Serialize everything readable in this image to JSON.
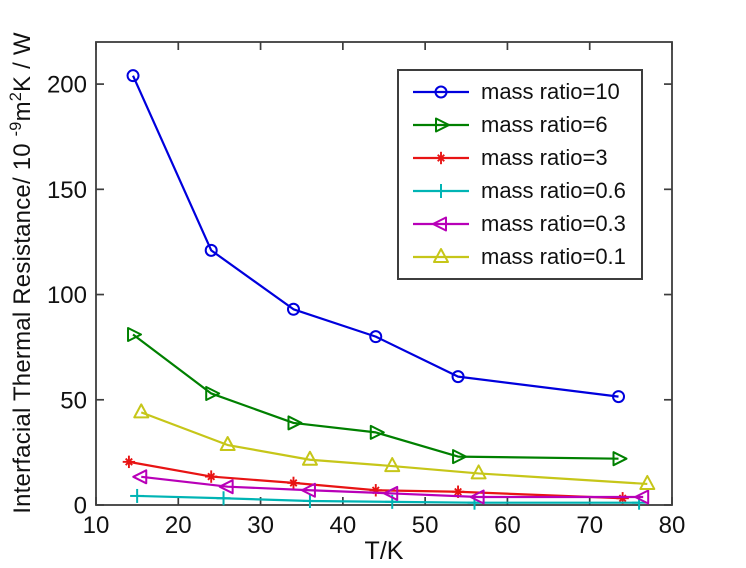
{
  "figure": {
    "background": "#ffffff",
    "axis_color": "#3d3d3d",
    "text_color": "#111111"
  },
  "labels": {
    "ylabel_prefix": "Interfacial Thermal Resistance/ 10 ",
    "ylabel_sup1": "-9",
    "ylabel_mid": "m",
    "ylabel_sup2": "2",
    "ylabel_suffix": "K / W"
  },
  "chart_data": {
    "type": "line",
    "title": "",
    "xlabel": "T/K",
    "ylabel": "Interfacial Thermal Resistance/ 10^-9 m^2 K / W",
    "xlim": [
      10,
      80
    ],
    "ylim": [
      0,
      220
    ],
    "x_ticks": [
      10,
      20,
      30,
      40,
      50,
      60,
      70,
      80
    ],
    "y_ticks": [
      0,
      50,
      100,
      150,
      200
    ],
    "grid": false,
    "legend_position": "upper-right-inside",
    "series": [
      {
        "name": "mass ratio=10",
        "color": "#0000dd",
        "marker": "circle",
        "x": [
          14.5,
          24,
          34,
          44,
          54,
          73.5
        ],
        "y": [
          204,
          121,
          93,
          80,
          61,
          51.5
        ]
      },
      {
        "name": "mass ratio=6",
        "color": "#008000",
        "marker": "triangle-right",
        "x": [
          14.5,
          24,
          34,
          44,
          54,
          73.5
        ],
        "y": [
          81,
          53,
          39,
          34.5,
          23,
          22
        ]
      },
      {
        "name": "mass ratio=3",
        "color": "#e81414",
        "marker": "asterisk",
        "x": [
          14,
          24,
          34,
          44,
          54,
          74
        ],
        "y": [
          20.5,
          13.5,
          10.5,
          7,
          6.3,
          3.2
        ]
      },
      {
        "name": "mass ratio=0.6",
        "color": "#00b4b4",
        "marker": "plus",
        "x": [
          15,
          25.5,
          36,
          46,
          56,
          76
        ],
        "y": [
          4.3,
          3.2,
          1.9,
          1.5,
          1.1,
          1.1
        ]
      },
      {
        "name": "mass ratio=0.3",
        "color": "#b800b8",
        "marker": "triangle-left",
        "x": [
          15.5,
          26,
          36,
          46,
          56.5,
          76.5
        ],
        "y": [
          13.4,
          8.7,
          7,
          5.5,
          3.8,
          3.8
        ]
      },
      {
        "name": "mass ratio=0.1",
        "color": "#c6c619",
        "marker": "triangle-up",
        "x": [
          15.5,
          26,
          36,
          46,
          56.5,
          77
        ],
        "y": [
          44,
          28.5,
          21.5,
          18.5,
          15,
          10
        ]
      }
    ]
  }
}
